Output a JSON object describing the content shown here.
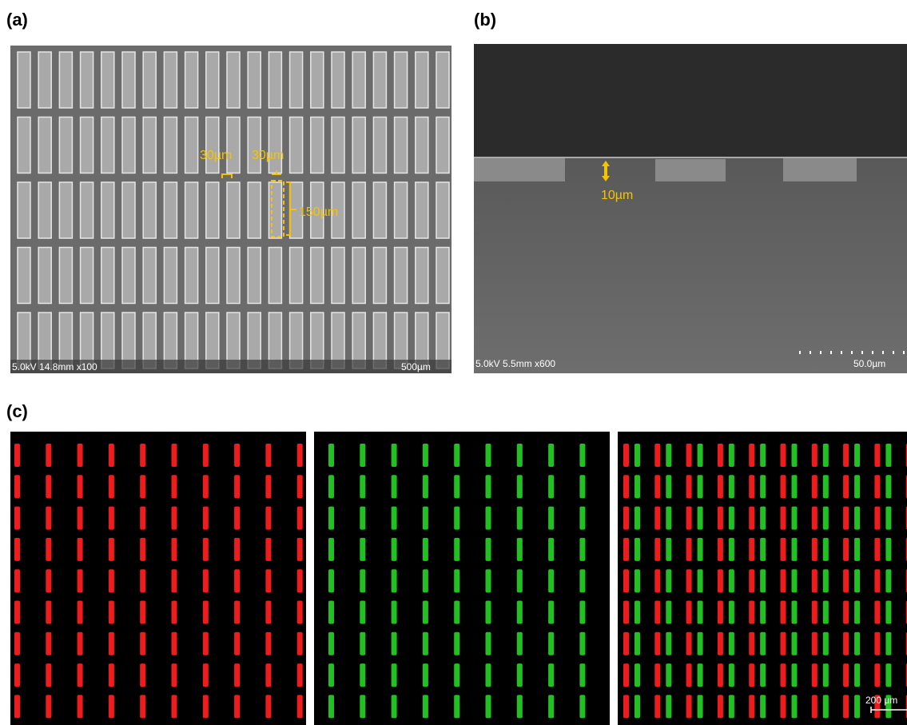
{
  "panel_a": {
    "label": "(a)",
    "annotations": [
      "30µm",
      "30µm",
      "150µm"
    ],
    "info": "5.0kV 14.8mm x100",
    "scale": "500µm"
  },
  "panel_b": {
    "label": "(b)",
    "annotations": [
      "10µm"
    ],
    "info": "5.0kV 5.5mm x600",
    "scale": "50.0µm"
  },
  "panel_c": {
    "label": "(c)",
    "scale": "200 µm"
  }
}
